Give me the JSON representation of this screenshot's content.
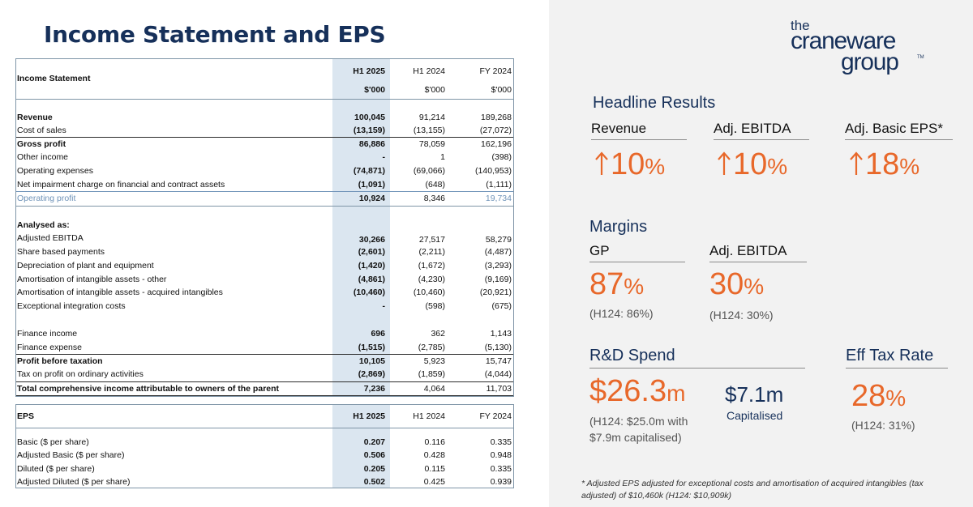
{
  "title": "Income Statement and EPS",
  "colors": {
    "navy": "#16305a",
    "orange": "#e8682a",
    "highlight": "#dbe6f0"
  },
  "income": {
    "header": {
      "label": "Income Statement",
      "c1": "H1 2025",
      "c2": "H1 2024",
      "c3": "FY 2024",
      "u1": "$'000",
      "u2": "$'000",
      "u3": "$'000"
    },
    "rows": [
      {
        "label": "Revenue",
        "c1": "100,045",
        "c2": "91,214",
        "c3": "189,268"
      },
      {
        "label": "Cost of sales",
        "c1": "(13,159)",
        "c2": "(13,155)",
        "c3": "(27,072)"
      },
      {
        "label": "Gross profit",
        "c1": "86,886",
        "c2": "78,059",
        "c3": "162,196"
      },
      {
        "label": "Other income",
        "c1": "-",
        "c2": "1",
        "c3": "(398)"
      },
      {
        "label": "Operating expenses",
        "c1": "(74,871)",
        "c2": "(69,066)",
        "c3": "(140,953)"
      },
      {
        "label": "Net impairment charge on financial and contract assets",
        "c1": "(1,091)",
        "c2": "(648)",
        "c3": "(1,111)"
      },
      {
        "label": "Operating profit",
        "c1": "10,924",
        "c2": "8,346",
        "c3": "19,734"
      },
      {
        "label": "Analysed as:",
        "c1": "",
        "c2": "",
        "c3": ""
      },
      {
        "label": "Adjusted EBITDA",
        "c1": "30,266",
        "c2": "27,517",
        "c3": "58,279"
      },
      {
        "label": "Share based payments",
        "c1": "(2,601)",
        "c2": "(2,211)",
        "c3": "(4,487)"
      },
      {
        "label": "Depreciation of plant and equipment",
        "c1": "(1,420)",
        "c2": "(1,672)",
        "c3": "(3,293)"
      },
      {
        "label": "Amortisation of intangible assets - other",
        "c1": "(4,861)",
        "c2": "(4,230)",
        "c3": "(9,169)"
      },
      {
        "label": "Amortisation of intangible assets - acquired intangibles",
        "c1": "(10,460)",
        "c2": "(10,460)",
        "c3": "(20,921)"
      },
      {
        "label": "Exceptional integration costs",
        "c1": "-",
        "c2": "(598)",
        "c3": "(675)"
      },
      {
        "label": "Finance income",
        "c1": "696",
        "c2": "362",
        "c3": "1,143"
      },
      {
        "label": "Finance expense",
        "c1": "(1,515)",
        "c2": "(2,785)",
        "c3": "(5,130)"
      },
      {
        "label": "Profit before taxation",
        "c1": "10,105",
        "c2": "5,923",
        "c3": "15,747"
      },
      {
        "label": "Tax on profit on ordinary activities",
        "c1": "(2,869)",
        "c2": "(1,859)",
        "c3": "(4,044)"
      },
      {
        "label": "Total comprehensive income attributable to owners of the parent",
        "c1": "7,236",
        "c2": "4,064",
        "c3": "11,703"
      }
    ]
  },
  "eps": {
    "header": {
      "label": "EPS",
      "c1": "H1 2025",
      "c2": "H1 2024",
      "c3": "FY 2024"
    },
    "rows": [
      {
        "label": "Basic ($ per share)",
        "c1": "0.207",
        "c2": "0.116",
        "c3": "0.335"
      },
      {
        "label": "Adjusted Basic ($ per share)",
        "c1": "0.506",
        "c2": "0.428",
        "c3": "0.948"
      },
      {
        "label": "Diluted ($ per share)",
        "c1": "0.205",
        "c2": "0.115",
        "c3": "0.335"
      },
      {
        "label": "Adjusted Diluted ($ per share)",
        "c1": "0.502",
        "c2": "0.425",
        "c3": "0.939"
      }
    ]
  },
  "logo": {
    "the": "the",
    "crane": "craneware",
    "group": "group",
    "tm": "TM"
  },
  "headline": {
    "title": "Headline Results",
    "revenue": {
      "label": "Revenue",
      "value": "10",
      "pct": "%"
    },
    "ebitda": {
      "label": "Adj. EBITDA",
      "value": "10",
      "pct": "%"
    },
    "eps": {
      "label": "Adj. Basic EPS*",
      "value": "18",
      "pct": "%"
    }
  },
  "margins": {
    "title": "Margins",
    "gp": {
      "label": "GP",
      "value": "87",
      "pct": "%",
      "prior": "(H124: 86%)"
    },
    "ebitda": {
      "label": "Adj. EBITDA",
      "value": "30",
      "pct": "%",
      "prior": "(H124: 30%)"
    }
  },
  "rnd": {
    "title": "R&D Spend",
    "value": "$26.3",
    "unit": "m",
    "prior_line1": "(H124: $25.0m with",
    "prior_line2": "$7.9m capitalised)",
    "capitalised_value": "$7.1m",
    "capitalised_label": "Capitalised"
  },
  "tax": {
    "title": "Eff Tax Rate",
    "value": "28",
    "pct": "%",
    "prior": "(H124: 31%)"
  },
  "footnote_line1": "* Adjusted EPS adjusted for exceptional costs and amortisation of acquired intangibles (tax",
  "footnote_line2": "adjusted) of $10,460k (H124: $10,909k)"
}
